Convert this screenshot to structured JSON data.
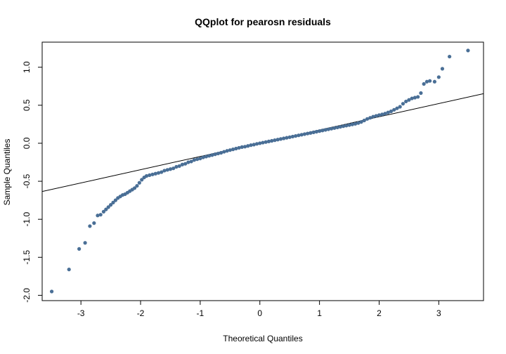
{
  "chart_data": {
    "type": "scatter",
    "title": "QQplot for pearosn residuals",
    "xlabel": "Theoretical Quantiles",
    "ylabel": "Sample Quantiles",
    "xlim": [
      -3.65,
      3.75
    ],
    "ylim": [
      -2.07,
      1.33
    ],
    "xticks": [
      -3,
      -2,
      -1,
      0,
      1,
      2,
      3
    ],
    "yticks": [
      -2.0,
      -1.5,
      -1.0,
      -0.5,
      0.0,
      0.5,
      1.0
    ],
    "ytick_labels": [
      "-2.0",
      "-1.5",
      "-1.0",
      "-0.5",
      "0.0",
      "0.5",
      "1.0"
    ],
    "grid": false,
    "point_color": "#4a6f96",
    "reference_line": {
      "intercept": 0.0,
      "slope": 0.174,
      "color": "#000000"
    },
    "series": [
      {
        "points": [
          [
            -3.49,
            -1.95
          ],
          [
            -3.2,
            -1.66
          ],
          [
            -3.03,
            -1.39
          ],
          [
            -2.93,
            -1.31
          ],
          [
            -2.85,
            -1.09
          ],
          [
            -2.78,
            -1.05
          ],
          [
            -2.72,
            -0.95
          ],
          [
            -2.67,
            -0.94
          ],
          [
            -2.62,
            -0.9
          ],
          [
            -2.58,
            -0.87
          ],
          [
            -2.54,
            -0.84
          ],
          [
            -2.5,
            -0.81
          ],
          [
            -2.46,
            -0.78
          ],
          [
            -2.42,
            -0.75
          ],
          [
            -2.38,
            -0.72
          ],
          [
            -2.34,
            -0.7
          ],
          [
            -2.3,
            -0.68
          ],
          [
            -2.26,
            -0.67
          ],
          [
            -2.22,
            -0.65
          ],
          [
            -2.18,
            -0.63
          ],
          [
            -2.14,
            -0.61
          ],
          [
            -2.1,
            -0.59
          ],
          [
            -2.06,
            -0.56
          ],
          [
            -2.02,
            -0.52
          ],
          [
            -1.98,
            -0.48
          ],
          [
            -1.94,
            -0.45
          ],
          [
            -1.9,
            -0.43
          ],
          [
            -1.85,
            -0.42
          ],
          [
            -1.8,
            -0.41
          ],
          [
            -1.75,
            -0.4
          ],
          [
            -1.7,
            -0.39
          ],
          [
            -1.65,
            -0.38
          ],
          [
            -1.6,
            -0.36
          ],
          [
            -1.55,
            -0.35
          ],
          [
            -1.5,
            -0.34
          ],
          [
            -1.45,
            -0.33
          ],
          [
            -1.4,
            -0.31
          ],
          [
            -1.35,
            -0.3
          ],
          [
            -1.3,
            -0.28
          ],
          [
            -1.25,
            -0.27
          ],
          [
            -1.2,
            -0.25
          ],
          [
            -1.15,
            -0.24
          ],
          [
            -1.1,
            -0.22
          ],
          [
            -1.05,
            -0.21
          ],
          [
            -1.0,
            -0.2
          ],
          [
            -0.95,
            -0.185
          ],
          [
            -0.9,
            -0.175
          ],
          [
            -0.85,
            -0.165
          ],
          [
            -0.8,
            -0.155
          ],
          [
            -0.75,
            -0.145
          ],
          [
            -0.7,
            -0.135
          ],
          [
            -0.65,
            -0.125
          ],
          [
            -0.6,
            -0.112
          ],
          [
            -0.55,
            -0.1
          ],
          [
            -0.5,
            -0.09
          ],
          [
            -0.45,
            -0.08
          ],
          [
            -0.4,
            -0.07
          ],
          [
            -0.35,
            -0.06
          ],
          [
            -0.3,
            -0.05
          ],
          [
            -0.25,
            -0.045
          ],
          [
            -0.2,
            -0.035
          ],
          [
            -0.15,
            -0.025
          ],
          [
            -0.1,
            -0.018
          ],
          [
            -0.05,
            -0.008
          ],
          [
            0.0,
            0.0
          ],
          [
            0.05,
            0.008
          ],
          [
            0.1,
            0.016
          ],
          [
            0.15,
            0.024
          ],
          [
            0.2,
            0.032
          ],
          [
            0.25,
            0.04
          ],
          [
            0.3,
            0.048
          ],
          [
            0.35,
            0.056
          ],
          [
            0.4,
            0.064
          ],
          [
            0.45,
            0.072
          ],
          [
            0.5,
            0.08
          ],
          [
            0.55,
            0.088
          ],
          [
            0.6,
            0.096
          ],
          [
            0.65,
            0.104
          ],
          [
            0.7,
            0.112
          ],
          [
            0.75,
            0.12
          ],
          [
            0.8,
            0.128
          ],
          [
            0.85,
            0.136
          ],
          [
            0.9,
            0.144
          ],
          [
            0.95,
            0.152
          ],
          [
            1.0,
            0.16
          ],
          [
            1.05,
            0.168
          ],
          [
            1.1,
            0.176
          ],
          [
            1.15,
            0.184
          ],
          [
            1.2,
            0.192
          ],
          [
            1.25,
            0.2
          ],
          [
            1.3,
            0.208
          ],
          [
            1.35,
            0.216
          ],
          [
            1.4,
            0.224
          ],
          [
            1.45,
            0.232
          ],
          [
            1.5,
            0.24
          ],
          [
            1.55,
            0.248
          ],
          [
            1.6,
            0.256
          ],
          [
            1.65,
            0.266
          ],
          [
            1.7,
            0.28
          ],
          [
            1.75,
            0.3
          ],
          [
            1.8,
            0.32
          ],
          [
            1.85,
            0.335
          ],
          [
            1.9,
            0.35
          ],
          [
            1.95,
            0.36
          ],
          [
            2.0,
            0.37
          ],
          [
            2.05,
            0.38
          ],
          [
            2.1,
            0.39
          ],
          [
            2.15,
            0.405
          ],
          [
            2.2,
            0.42
          ],
          [
            2.25,
            0.44
          ],
          [
            2.3,
            0.46
          ],
          [
            2.35,
            0.48
          ],
          [
            2.4,
            0.52
          ],
          [
            2.45,
            0.55
          ],
          [
            2.5,
            0.57
          ],
          [
            2.55,
            0.59
          ],
          [
            2.6,
            0.6
          ],
          [
            2.65,
            0.61
          ],
          [
            2.7,
            0.66
          ],
          [
            2.75,
            0.78
          ],
          [
            2.8,
            0.81
          ],
          [
            2.85,
            0.82
          ],
          [
            2.93,
            0.81
          ],
          [
            3.0,
            0.87
          ],
          [
            3.06,
            0.98
          ],
          [
            3.18,
            1.14
          ],
          [
            3.49,
            1.22
          ]
        ]
      }
    ]
  }
}
